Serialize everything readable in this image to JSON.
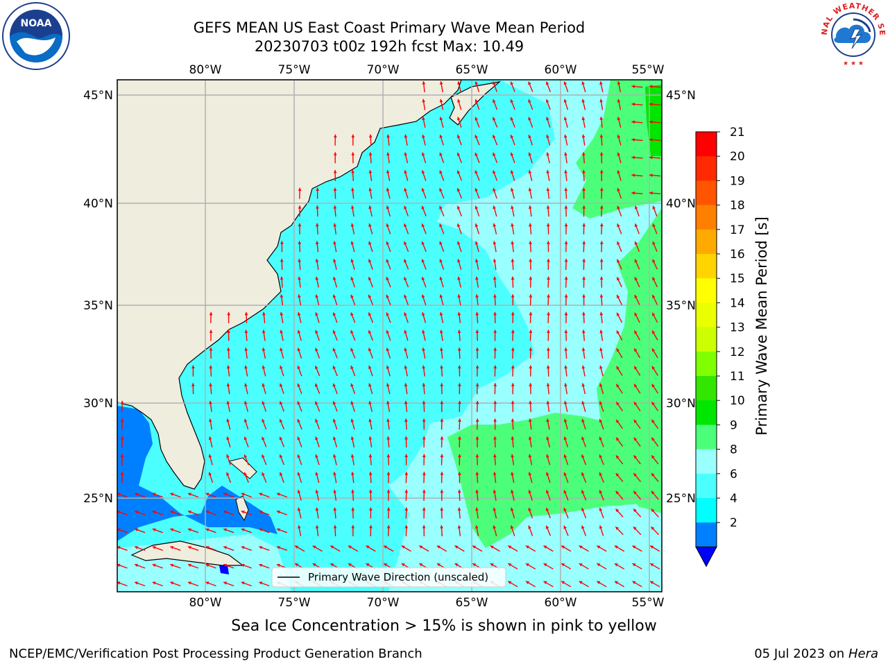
{
  "title": {
    "line1": "GEFS MEAN US East Coast Primary Wave Mean Period",
    "line2": "20230703 t00z 192h fcst   Max: 10.49"
  },
  "logos": {
    "left": "NOAA",
    "right": "NATIONAL WEATHER SERVICE"
  },
  "map": {
    "lon_labels": [
      "80°W",
      "75°W",
      "70°W",
      "65°W",
      "60°W",
      "55°W"
    ],
    "lat_labels": [
      "45°N",
      "40°N",
      "35°N",
      "30°N",
      "25°N"
    ],
    "legend": "Primary Wave Direction (unscaled)",
    "land_color": "#efedde",
    "arrow_color": "#ff0000",
    "grid_color": "#b0b0b0"
  },
  "colorbar": {
    "title": "Primary Wave Mean Period [s]",
    "labels": [
      "21",
      "20",
      "19",
      "18",
      "17",
      "16",
      "15",
      "14",
      "13",
      "12",
      "11",
      "10",
      "9",
      "8",
      "6",
      "4",
      "2"
    ],
    "colors_top_to_bottom": [
      "#ff0000",
      "#ff2a00",
      "#ff5500",
      "#ff8000",
      "#ffaa00",
      "#ffd400",
      "#ffff00",
      "#eaff00",
      "#ccff00",
      "#7fff00",
      "#33e600",
      "#00e600",
      "#4cff7a",
      "#99ffff",
      "#4cffff",
      "#00ffff",
      "#0080ff",
      "#0000ff"
    ]
  },
  "notes": {
    "sea_ice": "Sea Ice Concentration > 15% is shown in pink to yellow",
    "footer_left": "NCEP/EMC/Verification Post Processing Product Generation Branch",
    "footer_date": "05 Jul 2023 on",
    "footer_machine": "Hera"
  }
}
